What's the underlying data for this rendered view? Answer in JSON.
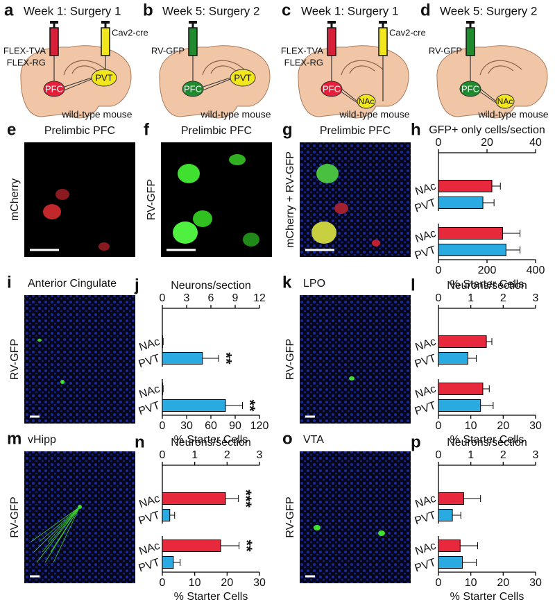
{
  "schematics": [
    {
      "letter": "a",
      "title": "Week 1: Surgery 1",
      "syringes": [
        {
          "color": "#d8203a",
          "labels": [
            "FLEX-TVA",
            "FLEX-RG"
          ]
        },
        {
          "color": "#f2e61c",
          "labels": [
            "Cav2-cre"
          ]
        }
      ],
      "source": {
        "text": "PFC",
        "color": "#e4203a"
      },
      "target": {
        "text": "PVT",
        "color": "#f2e61c"
      },
      "mouse": "wild-type mouse"
    },
    {
      "letter": "b",
      "title": "Week 5: Surgery 2",
      "syringes": [
        {
          "color": "#1f8a2e",
          "labels": [
            "RV-GFP"
          ]
        }
      ],
      "source": {
        "text": "PFC",
        "color": "#1f8a2e"
      },
      "target": {
        "text": "PVT",
        "color": "#f2e61c"
      },
      "mouse": "wild-type mouse"
    },
    {
      "letter": "c",
      "title": "Week 1: Surgery 1",
      "syringes": [
        {
          "color": "#d8203a",
          "labels": [
            "FLEX-TVA",
            "FLEX-RG"
          ]
        },
        {
          "color": "#f2e61c",
          "labels": [
            "Cav2-cre"
          ]
        }
      ],
      "source": {
        "text": "PFC",
        "color": "#e4203a"
      },
      "target": {
        "text": "NAc",
        "color": "#f2e61c"
      },
      "mouse": "wild-type mouse"
    },
    {
      "letter": "d",
      "title": "Week 5: Surgery 2",
      "syringes": [
        {
          "color": "#1f8a2e",
          "labels": [
            "RV-GFP"
          ]
        }
      ],
      "source": {
        "text": "PFC",
        "color": "#1f8a2e"
      },
      "target": {
        "text": "NAc",
        "color": "#f2e61c"
      },
      "mouse": "wild-type mouse"
    }
  ],
  "micrographs": [
    {
      "letter": "e",
      "title": "Prelimbic PFC",
      "side_label": "mCherry"
    },
    {
      "letter": "f",
      "title": "Prelimbic PFC",
      "side_label": "RV-GFP"
    },
    {
      "letter": "g",
      "title": "Prelimbic PFC",
      "side_label": "mCherry + RV-GFP"
    },
    {
      "letter": "i",
      "title": "Anterior Cingulate",
      "side_label": "RV-GFP"
    },
    {
      "letter": "k",
      "title": "LPO",
      "side_label": "RV-GFP"
    },
    {
      "letter": "m",
      "title": "vHipp",
      "side_label": "RV-GFP"
    },
    {
      "letter": "o",
      "title": "VTA",
      "side_label": "RV-GFP"
    }
  ],
  "chart_data": [
    {
      "type": "bar",
      "letter": "h",
      "subplots": [
        {
          "xlabel": "GFP+ only cells/section",
          "xlim": [
            0,
            40
          ],
          "xticks": [
            0,
            20,
            40
          ],
          "categories": [
            "NAc",
            "PVT"
          ],
          "values": [
            22,
            18.3
          ],
          "errors": [
            3.5,
            4.6
          ],
          "annotations": [
            null,
            null
          ],
          "colors": [
            "#e8283c",
            "#29abe2"
          ]
        },
        {
          "xlabel": "% Starter Cells",
          "xlim": [
            0,
            400
          ],
          "xticks": [
            0,
            200,
            400
          ],
          "categories": [
            "NAc",
            "PVT"
          ],
          "values": [
            264,
            278
          ],
          "errors": [
            72,
            58
          ],
          "annotations": [
            null,
            null
          ],
          "colors": [
            "#e8283c",
            "#29abe2"
          ]
        }
      ]
    },
    {
      "type": "bar",
      "letter": "j",
      "subplots": [
        {
          "xlabel": "Neurons/section",
          "xlim": [
            0,
            12
          ],
          "xticks": [
            0,
            3,
            6,
            9,
            12
          ],
          "categories": [
            "NAc",
            "PVT"
          ],
          "values": [
            0.05,
            4.95
          ],
          "errors": [
            0.05,
            2.0
          ],
          "annotations": [
            null,
            "**"
          ],
          "colors": [
            "#e8283c",
            "#29abe2"
          ]
        },
        {
          "xlabel": "% Starter Cells",
          "xlim": [
            0,
            120
          ],
          "xticks": [
            0,
            30,
            60,
            90,
            120
          ],
          "categories": [
            "NAc",
            "PVT"
          ],
          "values": [
            0.5,
            78
          ],
          "errors": [
            0.5,
            21
          ],
          "annotations": [
            null,
            "**"
          ],
          "colors": [
            "#e8283c",
            "#29abe2"
          ]
        }
      ]
    },
    {
      "type": "bar",
      "letter": "l",
      "subplots": [
        {
          "xlabel": "Neurons/section",
          "xlim": [
            0,
            3
          ],
          "xticks": [
            0,
            1,
            2,
            3
          ],
          "categories": [
            "NAc",
            "PVT"
          ],
          "values": [
            1.48,
            0.91
          ],
          "errors": [
            0.17,
            0.26
          ],
          "annotations": [
            null,
            null
          ],
          "colors": [
            "#e8283c",
            "#29abe2"
          ]
        },
        {
          "xlabel": "% Starter Cells",
          "xlim": [
            0,
            30
          ],
          "xticks": [
            0,
            10,
            20,
            30
          ],
          "categories": [
            "NAc",
            "PVT"
          ],
          "values": [
            13.7,
            13
          ],
          "errors": [
            2,
            3.9
          ],
          "annotations": [
            null,
            null
          ],
          "colors": [
            "#e8283c",
            "#29abe2"
          ]
        }
      ]
    },
    {
      "type": "bar",
      "letter": "n",
      "subplots": [
        {
          "xlabel": "Neurons/section",
          "xlim": [
            0,
            3
          ],
          "xticks": [
            0,
            1,
            2,
            3
          ],
          "categories": [
            "NAc",
            "PVT"
          ],
          "values": [
            1.95,
            0.23
          ],
          "errors": [
            0.4,
            0.15
          ],
          "annotations": [
            "***",
            null
          ],
          "colors": [
            "#e8283c",
            "#29abe2"
          ]
        },
        {
          "xlabel": "% Starter Cells",
          "xlim": [
            0,
            30
          ],
          "xticks": [
            0,
            10,
            20,
            30
          ],
          "categories": [
            "NAc",
            "PVT"
          ],
          "values": [
            18,
            3.4
          ],
          "errors": [
            5.7,
            2.1
          ],
          "annotations": [
            "**",
            null
          ],
          "colors": [
            "#e8283c",
            "#29abe2"
          ]
        }
      ]
    },
    {
      "type": "bar",
      "letter": "p",
      "subplots": [
        {
          "xlabel": "Neurons/section",
          "xlim": [
            0,
            3
          ],
          "xticks": [
            0,
            1,
            2,
            3
          ],
          "categories": [
            "NAc",
            "PVT"
          ],
          "values": [
            0.78,
            0.43
          ],
          "errors": [
            0.52,
            0.26
          ],
          "annotations": [
            null,
            null
          ],
          "colors": [
            "#e8283c",
            "#29abe2"
          ]
        },
        {
          "xlabel": "% Starter Cells",
          "xlim": [
            0,
            30
          ],
          "xticks": [
            0,
            10,
            20,
            30
          ],
          "categories": [
            "NAc",
            "PVT"
          ],
          "values": [
            6.7,
            7.4
          ],
          "errors": [
            5.4,
            4.3
          ],
          "annotations": [
            null,
            null
          ],
          "colors": [
            "#e8283c",
            "#29abe2"
          ]
        }
      ]
    }
  ]
}
